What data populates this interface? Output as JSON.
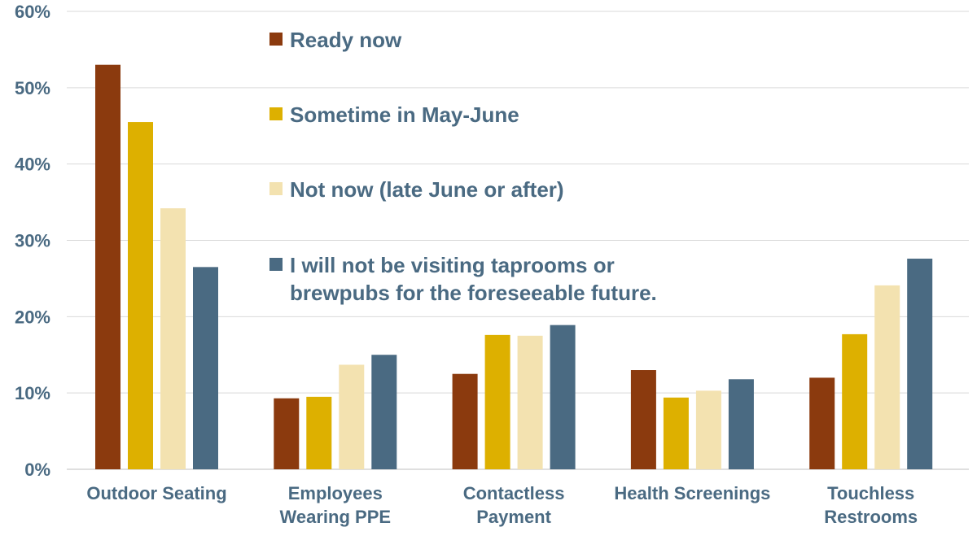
{
  "chart_data": {
    "type": "bar",
    "title": "",
    "xlabel": "",
    "ylabel": "",
    "ylim": [
      0,
      0.6
    ],
    "y_tick_labels": [
      "0%",
      "10%",
      "20%",
      "30%",
      "40%",
      "50%",
      "60%"
    ],
    "grid": true,
    "legend_position": "top-center",
    "categories": [
      [
        "Outdoor Seating"
      ],
      [
        "Employees",
        "Wearing PPE"
      ],
      [
        "Contactless",
        "Payment"
      ],
      [
        "Health Screenings"
      ],
      [
        "Touchless",
        "Restrooms"
      ]
    ],
    "series": [
      {
        "name": [
          "Ready now"
        ],
        "color": "#8b3a0e",
        "values": [
          0.53,
          0.093,
          0.125,
          0.13,
          0.12
        ]
      },
      {
        "name": [
          "Sometime in May-June"
        ],
        "color": "#ddb000",
        "values": [
          0.455,
          0.095,
          0.176,
          0.094,
          0.177
        ]
      },
      {
        "name": [
          "Not now (late June or after)"
        ],
        "color": "#f3e2b0",
        "values": [
          0.342,
          0.137,
          0.175,
          0.103,
          0.241
        ]
      },
      {
        "name": [
          "I will not be visiting taprooms or",
          "brewpubs for the foreseeable future."
        ],
        "color": "#4a6a82",
        "values": [
          0.265,
          0.15,
          0.189,
          0.118,
          0.276
        ]
      }
    ]
  }
}
